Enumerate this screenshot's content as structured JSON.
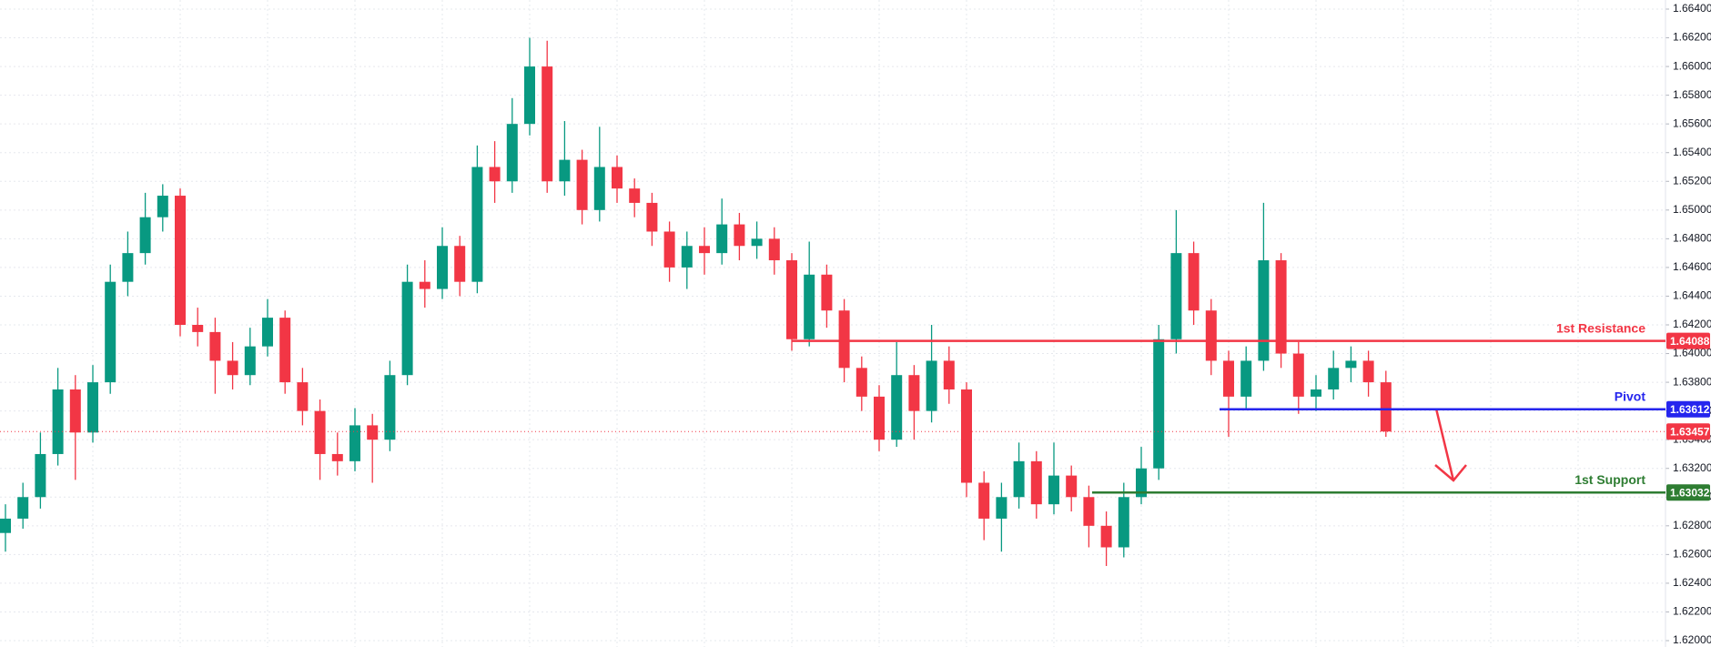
{
  "chart_data": {
    "type": "candlestick",
    "up_color": "#089981",
    "down_color": "#f23645",
    "open": [
      1.6275,
      1.6285,
      1.63,
      1.633,
      1.6375,
      1.6345,
      1.638,
      1.645,
      1.647,
      1.6495,
      1.651,
      1.642,
      1.6415,
      1.6395,
      1.6385,
      1.6405,
      1.6425,
      1.638,
      1.636,
      1.633,
      1.6325,
      1.635,
      1.634,
      1.6385,
      1.645,
      1.6445,
      1.6475,
      1.645,
      1.653,
      1.652,
      1.656,
      1.66,
      1.652,
      1.6535,
      1.65,
      1.653,
      1.6515,
      1.6505,
      1.6485,
      1.646,
      1.6475,
      1.647,
      1.649,
      1.6475,
      1.648,
      1.6465,
      1.641,
      1.6455,
      1.643,
      1.639,
      1.637,
      1.634,
      1.6385,
      1.636,
      1.6395,
      1.6375,
      1.631,
      1.6285,
      1.63,
      1.6325,
      1.6295,
      1.6315,
      1.63,
      1.628,
      1.6265,
      1.63,
      1.632,
      1.641,
      1.647,
      1.643,
      1.6395,
      1.637,
      1.6395,
      1.6465,
      1.64,
      1.637,
      1.6375,
      1.639,
      1.6395,
      1.638
    ],
    "high": [
      1.6295,
      1.631,
      1.6345,
      1.639,
      1.6385,
      1.6392,
      1.6462,
      1.6485,
      1.6512,
      1.6518,
      1.6515,
      1.6432,
      1.6425,
      1.6408,
      1.6418,
      1.6438,
      1.643,
      1.639,
      1.6368,
      1.6345,
      1.6362,
      1.6358,
      1.6395,
      1.6462,
      1.6465,
      1.6488,
      1.6482,
      1.6545,
      1.6548,
      1.6578,
      1.662,
      1.6618,
      1.6562,
      1.6542,
      1.6558,
      1.6538,
      1.6522,
      1.6512,
      1.6492,
      1.6485,
      1.6488,
      1.6508,
      1.6498,
      1.6492,
      1.6488,
      1.647,
      1.6478,
      1.6462,
      1.6438,
      1.6398,
      1.6378,
      1.6408,
      1.6392,
      1.642,
      1.6405,
      1.638,
      1.6318,
      1.631,
      1.6338,
      1.6332,
      1.6338,
      1.6322,
      1.6308,
      1.629,
      1.631,
      1.6335,
      1.642,
      1.65,
      1.6478,
      1.6438,
      1.6402,
      1.6405,
      1.6505,
      1.647,
      1.6408,
      1.6385,
      1.6402,
      1.6405,
      1.6402,
      1.6388
    ],
    "low": [
      1.6262,
      1.6278,
      1.6292,
      1.6322,
      1.6312,
      1.6338,
      1.6372,
      1.644,
      1.6462,
      1.6485,
      1.6412,
      1.6405,
      1.6372,
      1.6375,
      1.6378,
      1.6398,
      1.6372,
      1.635,
      1.6312,
      1.6315,
      1.6318,
      1.631,
      1.6332,
      1.6378,
      1.6432,
      1.6438,
      1.644,
      1.6442,
      1.6505,
      1.6512,
      1.6552,
      1.6512,
      1.651,
      1.649,
      1.6492,
      1.6505,
      1.6495,
      1.6475,
      1.645,
      1.6445,
      1.6455,
      1.6462,
      1.6465,
      1.6466,
      1.6455,
      1.6402,
      1.6405,
      1.6418,
      1.638,
      1.636,
      1.6332,
      1.6335,
      1.634,
      1.6352,
      1.6365,
      1.63,
      1.627,
      1.6262,
      1.6292,
      1.6285,
      1.6288,
      1.629,
      1.6265,
      1.6252,
      1.6258,
      1.6295,
      1.6312,
      1.64,
      1.642,
      1.6385,
      1.6342,
      1.6362,
      1.6388,
      1.639,
      1.6358,
      1.636,
      1.6368,
      1.638,
      1.637,
      1.6342
    ],
    "close": [
      1.6285,
      1.63,
      1.633,
      1.6375,
      1.6345,
      1.638,
      1.645,
      1.647,
      1.6495,
      1.651,
      1.642,
      1.6415,
      1.6395,
      1.6385,
      1.6405,
      1.6425,
      1.638,
      1.636,
      1.633,
      1.6325,
      1.635,
      1.634,
      1.6385,
      1.645,
      1.6445,
      1.6475,
      1.645,
      1.653,
      1.652,
      1.656,
      1.66,
      1.652,
      1.6535,
      1.65,
      1.653,
      1.6515,
      1.6505,
      1.6485,
      1.646,
      1.6475,
      1.647,
      1.649,
      1.6475,
      1.648,
      1.6465,
      1.641,
      1.6455,
      1.643,
      1.639,
      1.637,
      1.634,
      1.6385,
      1.636,
      1.6395,
      1.6375,
      1.631,
      1.6285,
      1.63,
      1.6325,
      1.6295,
      1.6315,
      1.63,
      1.628,
      1.6265,
      1.63,
      1.632,
      1.641,
      1.647,
      1.643,
      1.6395,
      1.637,
      1.6395,
      1.6465,
      1.64,
      1.637,
      1.6375,
      1.639,
      1.6395,
      1.638,
      1.63457
    ],
    "ylim": [
      1.62,
      1.664
    ],
    "yticks": [
      {
        "value": 1.62,
        "label": "1.62000"
      },
      {
        "value": 1.622,
        "label": "1.62200"
      },
      {
        "value": 1.624,
        "label": "1.62400"
      },
      {
        "value": 1.626,
        "label": "1.62600"
      },
      {
        "value": 1.628,
        "label": "1.62800"
      },
      {
        "value": 1.63,
        "label": "1.63000"
      },
      {
        "value": 1.632,
        "label": "1.63200"
      },
      {
        "value": 1.634,
        "label": "1.63400"
      },
      {
        "value": 1.636,
        "label": "1.63600"
      },
      {
        "value": 1.638,
        "label": "1.63800"
      },
      {
        "value": 1.64,
        "label": "1.64000"
      },
      {
        "value": 1.642,
        "label": "1.64200"
      },
      {
        "value": 1.644,
        "label": "1.64400"
      },
      {
        "value": 1.646,
        "label": "1.64600"
      },
      {
        "value": 1.648,
        "label": "1.64800"
      },
      {
        "value": 1.65,
        "label": "1.65000"
      },
      {
        "value": 1.652,
        "label": "1.65200"
      },
      {
        "value": 1.654,
        "label": "1.65400"
      },
      {
        "value": 1.656,
        "label": "1.65600"
      },
      {
        "value": 1.658,
        "label": "1.65800"
      },
      {
        "value": 1.66,
        "label": "1.66000"
      },
      {
        "value": 1.662,
        "label": "1.66200"
      },
      {
        "value": 1.664,
        "label": "1.66400"
      }
    ],
    "grid": true,
    "levels": [
      {
        "name": "1st Resistance",
        "value": 1.64088,
        "color": "#f23645"
      },
      {
        "name": "Pivot",
        "value": 1.63612,
        "color": "#2525ee"
      },
      {
        "name": "1st Support",
        "value": 1.63032,
        "color": "#2e7d32"
      }
    ],
    "last_price": 1.63457,
    "last_price_color": "#f23645"
  }
}
